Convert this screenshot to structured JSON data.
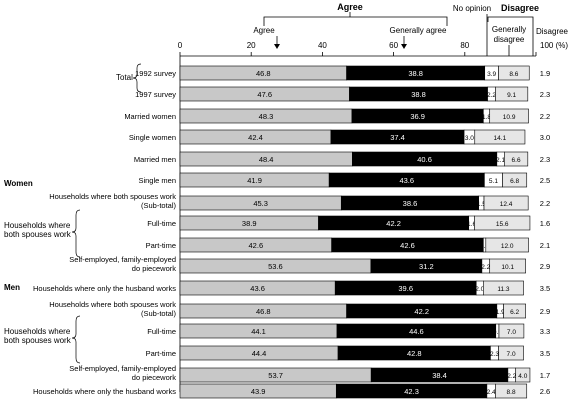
{
  "chart_data": {
    "type": "bar",
    "stacked": true,
    "orientation": "horizontal",
    "xlim": [
      0,
      100
    ],
    "ticks": [
      "0",
      "20",
      "40",
      "60",
      "80",
      "100 (%)"
    ],
    "header": {
      "agree": "Agree",
      "agree_sub": "Agree",
      "generally_agree": "Generally agree",
      "no_opinion": "No opinion",
      "disagree": "Disagree",
      "generally_disagree": "Generally disagree",
      "disagree_col": "Disagree"
    },
    "groups": {
      "total": "Total",
      "women": "Women",
      "men": "Men",
      "households_both_work": "Households where both spouses work"
    },
    "series": [
      {
        "name": "Agree",
        "color": "#c8c8c8"
      },
      {
        "name": "Generally agree",
        "color": "#000000"
      },
      {
        "name": "No opinion",
        "color": "#ffffff"
      },
      {
        "name": "Generally disagree",
        "color": "#e6e6e6"
      },
      {
        "name": "Disagree",
        "color": "#ffffff"
      }
    ],
    "rows": [
      {
        "label": "1992 survey",
        "values": [
          46.8,
          38.8,
          3.9,
          8.6,
          1.9
        ]
      },
      {
        "label": "1997 survey",
        "values": [
          47.6,
          38.8,
          2.2,
          9.1,
          2.3
        ]
      },
      {
        "label": "Married women",
        "values": [
          48.3,
          36.9,
          1.8,
          10.9,
          2.2
        ]
      },
      {
        "label": "Single women",
        "values": [
          42.4,
          37.4,
          3.0,
          14.1,
          3.0
        ]
      },
      {
        "label": "Married men",
        "values": [
          48.4,
          40.6,
          2.1,
          6.6,
          2.3
        ]
      },
      {
        "label": "Single men",
        "values": [
          41.9,
          43.6,
          5.1,
          6.8,
          2.5
        ]
      },
      {
        "label": "Households where both spouses work (Sub-total)",
        "values": [
          45.3,
          38.6,
          1.5,
          12.4,
          2.2
        ]
      },
      {
        "label": "Full-time",
        "values": [
          38.9,
          42.2,
          1.6,
          15.6,
          1.6
        ]
      },
      {
        "label": "Part-time",
        "values": [
          42.6,
          42.6,
          0.7,
          12.0,
          2.1
        ]
      },
      {
        "label": "Self-employed, family-employed do piecework",
        "values": [
          53.6,
          31.2,
          2.2,
          10.1,
          2.9
        ]
      },
      {
        "label": "Households where only the husband works",
        "values": [
          43.6,
          39.6,
          2.0,
          11.3,
          3.5
        ]
      },
      {
        "label": "Households where both spouses work (Sub-total)",
        "values": [
          46.8,
          42.2,
          1.9,
          6.2,
          2.9
        ]
      },
      {
        "label": "Full-time",
        "values": [
          44.1,
          44.6,
          0.9,
          7.0,
          3.3
        ]
      },
      {
        "label": "Part-time",
        "values": [
          44.4,
          42.8,
          2.3,
          7.0,
          3.5
        ]
      },
      {
        "label": "Self-employed, family-employed do piecework",
        "values": [
          53.7,
          38.4,
          2.2,
          4.0,
          1.7
        ]
      },
      {
        "label": "Households where only the husband works",
        "values": [
          43.9,
          42.3,
          2.4,
          8.8,
          2.6
        ]
      }
    ]
  }
}
